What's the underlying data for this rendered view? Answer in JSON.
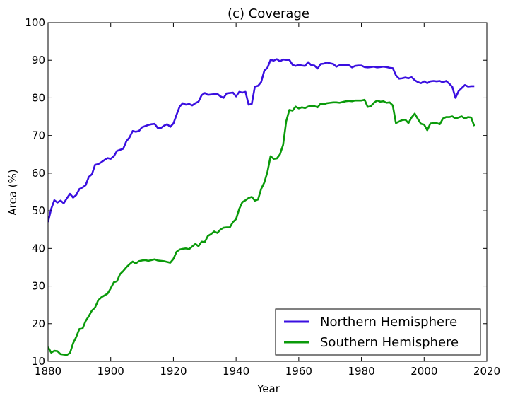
{
  "chart_data": {
    "type": "line",
    "title": "(c) Coverage",
    "xlabel": "Year",
    "ylabel": "Area (%)",
    "xlim": [
      1880,
      2020
    ],
    "ylim": [
      10,
      100
    ],
    "xticks": [
      1880,
      1900,
      1920,
      1940,
      1960,
      1980,
      2000,
      2020
    ],
    "yticks": [
      10,
      20,
      30,
      40,
      50,
      60,
      70,
      80,
      90,
      100
    ],
    "grid": false,
    "legend_position": "lower-right",
    "series": [
      {
        "name": "Northern Hemisphere",
        "color": "#3a0fe0",
        "x": [
          1880,
          1881,
          1882,
          1883,
          1884,
          1885,
          1886,
          1887,
          1888,
          1889,
          1890,
          1891,
          1892,
          1893,
          1894,
          1895,
          1896,
          1897,
          1898,
          1899,
          1900,
          1901,
          1902,
          1903,
          1904,
          1905,
          1906,
          1907,
          1908,
          1909,
          1910,
          1911,
          1912,
          1913,
          1914,
          1915,
          1916,
          1917,
          1918,
          1919,
          1920,
          1921,
          1922,
          1923,
          1924,
          1925,
          1926,
          1927,
          1928,
          1929,
          1930,
          1931,
          1932,
          1933,
          1934,
          1935,
          1936,
          1937,
          1938,
          1939,
          1940,
          1941,
          1942,
          1943,
          1944,
          1945,
          1946,
          1947,
          1948,
          1949,
          1950,
          1951,
          1952,
          1953,
          1954,
          1955,
          1956,
          1957,
          1958,
          1959,
          1960,
          1961,
          1962,
          1963,
          1964,
          1965,
          1966,
          1967,
          1968,
          1969,
          1970,
          1971,
          1972,
          1973,
          1974,
          1975,
          1976,
          1977,
          1978,
          1979,
          1980,
          1981,
          1982,
          1983,
          1984,
          1985,
          1986,
          1987,
          1988,
          1989,
          1990,
          1991,
          1992,
          1993,
          1994,
          1995,
          1996,
          1997,
          1998,
          1999,
          2000,
          2001,
          2002,
          2003,
          2004,
          2005,
          2006,
          2007,
          2008,
          2009,
          2010,
          2011,
          2012,
          2013,
          2014,
          2015,
          2016
        ],
        "values": [
          47.0,
          50.5,
          52.8,
          52.2,
          52.7,
          52.0,
          53.3,
          54.5,
          53.5,
          54.2,
          55.8,
          56.2,
          56.8,
          59.0,
          59.7,
          62.2,
          62.4,
          62.9,
          63.5,
          64.0,
          63.8,
          64.5,
          65.9,
          66.2,
          66.5,
          68.5,
          69.5,
          71.2,
          71.0,
          71.2,
          72.2,
          72.5,
          72.8,
          73.0,
          73.1,
          72.0,
          72.0,
          72.6,
          73.0,
          72.3,
          73.2,
          75.5,
          77.7,
          78.6,
          78.2,
          78.4,
          78.0,
          78.6,
          79.0,
          80.7,
          81.3,
          80.8,
          80.9,
          81.0,
          81.1,
          80.4,
          80.0,
          81.2,
          81.3,
          81.4,
          80.4,
          81.6,
          81.4,
          81.6,
          78.2,
          78.4,
          83.0,
          83.2,
          84.2,
          87.2,
          88.0,
          90.1,
          89.9,
          90.3,
          89.7,
          90.2,
          90.1,
          90.1,
          88.8,
          88.5,
          88.8,
          88.6,
          88.5,
          89.5,
          88.7,
          88.6,
          87.8,
          89.0,
          89.1,
          89.4,
          89.2,
          89.0,
          88.3,
          88.7,
          88.8,
          88.7,
          88.7,
          88.1,
          88.5,
          88.6,
          88.6,
          88.2,
          88.1,
          88.2,
          88.3,
          88.1,
          88.2,
          88.3,
          88.2,
          88.0,
          87.9,
          86.0,
          85.1,
          85.2,
          85.4,
          85.2,
          85.5,
          84.7,
          84.2,
          83.9,
          84.4,
          83.9,
          84.4,
          84.5,
          84.4,
          84.5,
          84.1,
          84.5,
          83.8,
          82.9,
          80.0,
          81.8,
          82.6,
          83.4,
          83.0,
          83.1,
          83.1
        ]
      },
      {
        "name": "Southern Hemisphere",
        "color": "#0a9a0a",
        "x": [
          1880,
          1881,
          1882,
          1883,
          1884,
          1885,
          1886,
          1887,
          1888,
          1889,
          1890,
          1891,
          1892,
          1893,
          1894,
          1895,
          1896,
          1897,
          1898,
          1899,
          1900,
          1901,
          1902,
          1903,
          1904,
          1905,
          1906,
          1907,
          1908,
          1909,
          1910,
          1911,
          1912,
          1913,
          1914,
          1915,
          1916,
          1917,
          1918,
          1919,
          1920,
          1921,
          1922,
          1923,
          1924,
          1925,
          1926,
          1927,
          1928,
          1929,
          1930,
          1931,
          1932,
          1933,
          1934,
          1935,
          1936,
          1937,
          1938,
          1939,
          1940,
          1941,
          1942,
          1943,
          1944,
          1945,
          1946,
          1947,
          1948,
          1949,
          1950,
          1951,
          1952,
          1953,
          1954,
          1955,
          1956,
          1957,
          1958,
          1959,
          1960,
          1961,
          1962,
          1963,
          1964,
          1965,
          1966,
          1967,
          1968,
          1969,
          1970,
          1971,
          1972,
          1973,
          1974,
          1975,
          1976,
          1977,
          1978,
          1979,
          1980,
          1981,
          1982,
          1983,
          1984,
          1985,
          1986,
          1987,
          1988,
          1989,
          1990,
          1991,
          1992,
          1993,
          1994,
          1995,
          1996,
          1997,
          1998,
          1999,
          2000,
          2001,
          2002,
          2003,
          2004,
          2005,
          2006,
          2007,
          2008,
          2009,
          2010,
          2011,
          2012,
          2013,
          2014,
          2015,
          2016
        ],
        "values": [
          13.8,
          12.3,
          12.8,
          12.7,
          11.9,
          11.8,
          11.7,
          12.2,
          14.8,
          16.5,
          18.6,
          18.7,
          20.7,
          22.0,
          23.5,
          24.3,
          26.2,
          27.0,
          27.5,
          28.0,
          29.4,
          31.0,
          31.3,
          33.2,
          34.0,
          35.0,
          35.8,
          36.5,
          36.0,
          36.6,
          36.8,
          36.9,
          36.7,
          36.9,
          37.1,
          36.8,
          36.7,
          36.6,
          36.4,
          36.2,
          37.2,
          39.1,
          39.7,
          39.9,
          40.0,
          39.8,
          40.5,
          41.2,
          40.6,
          41.8,
          41.7,
          43.3,
          43.8,
          44.5,
          44.1,
          45.0,
          45.5,
          45.6,
          45.6,
          47.0,
          47.8,
          50.5,
          52.3,
          52.8,
          53.4,
          53.7,
          52.7,
          53.0,
          55.8,
          57.5,
          60.3,
          64.5,
          63.8,
          63.9,
          65.0,
          67.5,
          73.8,
          76.8,
          76.6,
          77.7,
          77.2,
          77.5,
          77.3,
          77.7,
          77.9,
          77.8,
          77.5,
          78.5,
          78.3,
          78.6,
          78.7,
          78.8,
          78.8,
          78.7,
          78.9,
          79.1,
          79.2,
          79.1,
          79.3,
          79.3,
          79.3,
          79.5,
          77.6,
          77.8,
          78.7,
          79.3,
          79.0,
          79.1,
          78.7,
          78.8,
          78.0,
          73.3,
          73.7,
          74.1,
          74.2,
          73.3,
          74.8,
          75.8,
          74.4,
          73.1,
          72.9,
          71.4,
          73.2,
          73.3,
          73.3,
          73.0,
          74.5,
          74.9,
          74.9,
          75.1,
          74.5,
          74.8,
          75.1,
          74.5,
          74.9,
          74.8,
          72.5
        ]
      }
    ]
  }
}
